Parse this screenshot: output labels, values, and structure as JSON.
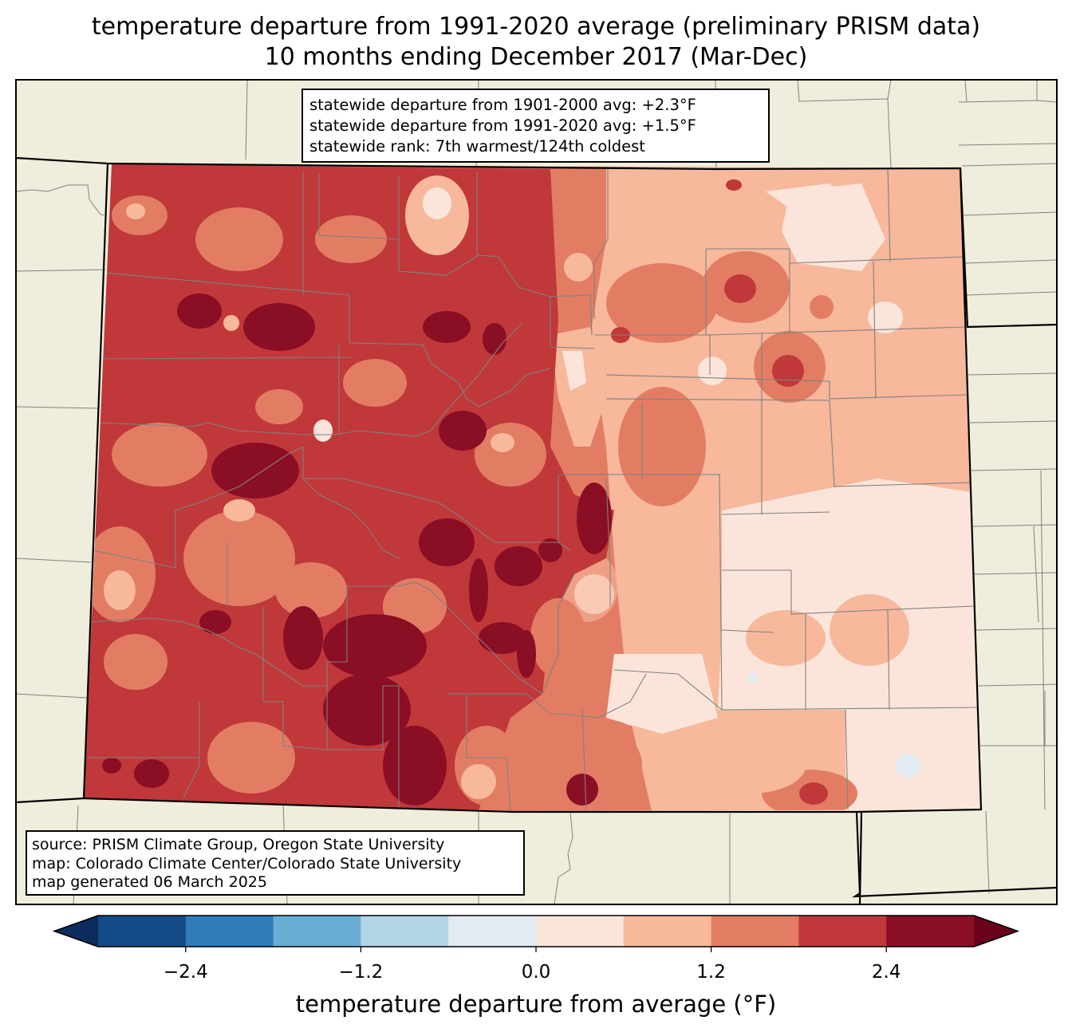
{
  "title": {
    "line1": "temperature departure from 1991-2020 average (preliminary PRISM data)",
    "line2": "10 months ending December 2017 (Mar-Dec)"
  },
  "stats_box": {
    "line1": "statewide departure from 1901-2000 avg: +2.3°F",
    "line2": "statewide departure from 1991-2020 avg: +1.5°F",
    "line3": "statewide rank: 7th warmest/124th coldest"
  },
  "source_box": {
    "line1": "source: PRISM Climate Group, Oregon State University",
    "line2": "map: Colorado Climate Center/Colorado State University",
    "line3": "map generated 06 March 2025"
  },
  "colorbar": {
    "label": "temperature departure from average (°F)",
    "ticks": [
      "−2.4",
      "−1.2",
      "0.0",
      "1.2",
      "2.4"
    ],
    "tick_values": [
      -2.4,
      -1.2,
      0.0,
      1.2,
      2.4
    ],
    "bins": [
      {
        "min": -3.0,
        "max": -2.4,
        "color": "#144a87"
      },
      {
        "min": -2.4,
        "max": -1.8,
        "color": "#2f7cb8"
      },
      {
        "min": -1.8,
        "max": -1.2,
        "color": "#6aaed3"
      },
      {
        "min": -1.2,
        "max": -0.6,
        "color": "#b2d4e7"
      },
      {
        "min": -0.6,
        "max": 0.0,
        "color": "#e2ebf2"
      },
      {
        "min": 0.0,
        "max": 0.6,
        "color": "#fbe5da"
      },
      {
        "min": 0.6,
        "max": 1.2,
        "color": "#f7b89c"
      },
      {
        "min": 1.2,
        "max": 1.8,
        "color": "#e27d64"
      },
      {
        "min": 1.8,
        "max": 2.4,
        "color": "#c0383a"
      },
      {
        "min": 2.4,
        "max": 3.0,
        "color": "#8a0e24"
      }
    ],
    "under_color": "#0b2c5c",
    "over_color": "#69001c"
  },
  "map_colors": {
    "land": "#efeedc",
    "state_border": "#000000",
    "county_border": "#808080"
  }
}
